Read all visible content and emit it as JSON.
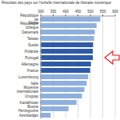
{
  "chart_data": {
    "type": "bar",
    "orientation": "horizontal",
    "title": "Résultats des pays sur l'échelle internationale de littératie numérique",
    "categories": [
      "République de Corée",
      "République tchèque",
      "Danemark",
      "Taïwan",
      "Suède",
      "Finlande",
      "Portugal",
      "Allemagne",
      "France",
      "Luxembourg",
      "Italie",
      "Moyenne internationale",
      "Uruguay",
      "Kazakhstan",
      "Bosnie Herzégovine",
      "Azerbaïdjan"
    ],
    "values": [
      540,
      525,
      518,
      515,
      511,
      510,
      510,
      502,
      499,
      491,
      485,
      476,
      466,
      444,
      412,
      340
    ],
    "colors": [
      "#8fb0de",
      "#8fb0de",
      "#8fb0de",
      "#8fb0de",
      "#2e5aa8",
      "#2e5aa8",
      "#2e5aa8",
      "#2e5aa8",
      "#2e5aa8",
      "#8fb0de",
      "#8fb0de",
      "#8fb0de",
      "#8fb0de",
      "#8fb0de",
      "#8fb0de",
      "#8fb0de"
    ],
    "xlim": [
      300,
      600
    ],
    "xticks": [
      300,
      350,
      400,
      450,
      500,
      550,
      600
    ],
    "grid": true
  }
}
